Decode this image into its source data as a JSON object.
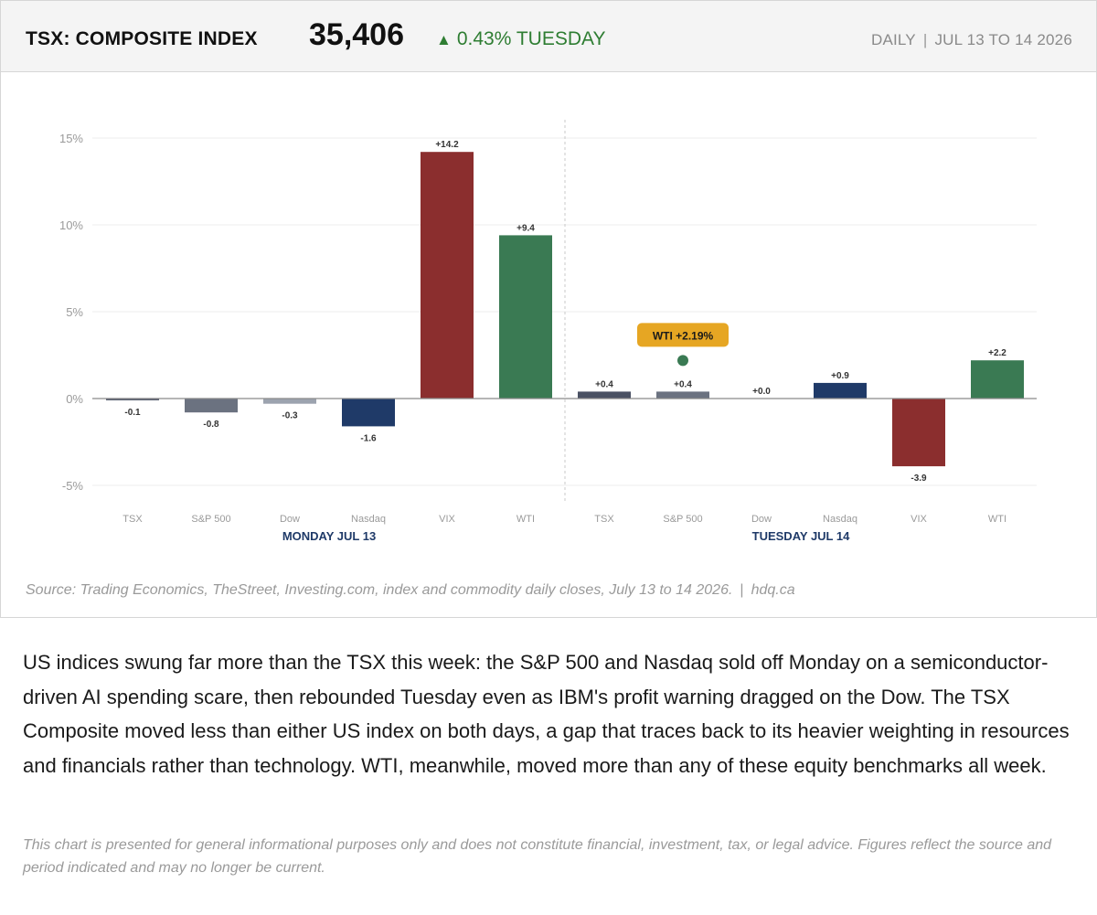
{
  "header": {
    "title": "TSX: COMPOSITE INDEX",
    "value": "35,406",
    "change_arrow": "▲",
    "change": "0.43% TUESDAY",
    "frequency": "DAILY",
    "separator": "|",
    "period": "JUL 13 TO 14 2026"
  },
  "chart_data": {
    "type": "bar",
    "ylim": [
      -6,
      16
    ],
    "yticks": [
      -5,
      0,
      5,
      10,
      15
    ],
    "ytick_labels": [
      "-5%",
      "0%",
      "5%",
      "10%",
      "15%"
    ],
    "grid": true,
    "groups": [
      {
        "label": "MONDAY JUL 13",
        "categories": [
          "TSX",
          "S&P 500",
          "Dow",
          "Nasdaq",
          "VIX",
          "WTI"
        ],
        "values": [
          -0.1,
          -0.8,
          -0.3,
          -1.6,
          14.2,
          9.4
        ],
        "value_labels": [
          "-0.1",
          "-0.8",
          "-0.3",
          "-1.6",
          "+14.2",
          "+9.4"
        ]
      },
      {
        "label": "TUESDAY JUL 14",
        "categories": [
          "TSX",
          "S&P 500",
          "Dow",
          "Nasdaq",
          "VIX",
          "WTI"
        ],
        "values": [
          0.4,
          0.4,
          0.0,
          0.9,
          -3.9,
          2.2
        ],
        "value_labels": [
          "+0.4",
          "+0.4",
          "+0.0",
          "+0.9",
          "-3.9",
          "+2.2"
        ]
      }
    ],
    "colors": {
      "TSX": "#4a5163",
      "S&P 500": "#6b7280",
      "Dow": "#9ca3af",
      "Nasdaq": "#1f3a68",
      "VIX": "#8b2e2e",
      "WTI": "#3a7a53"
    },
    "annotation": {
      "label": "WTI +2.19%",
      "x_group": 1,
      "x_category": "S&P 500",
      "y": 2.19,
      "badge_color": "#e6a623",
      "dot_color": "#3a7a53"
    },
    "group_label_color": "#1f3a68"
  },
  "footer": {
    "source": "Source: Trading Economics, TheStreet, Investing.com, index and commodity daily closes, July 13 to 14 2026.",
    "separator": "|",
    "site": "hdq.ca"
  },
  "commentary": "US indices swung far more than the TSX this week: the S&P 500 and Nasdaq sold off Monday on a semiconductor-driven AI spending scare, then rebounded Tuesday even as IBM's profit warning dragged on the Dow. The TSX Composite moved less than either US index on both days, a gap that traces back to its heavier weighting in resources and financials rather than technology. WTI, meanwhile, moved more than any of these equity benchmarks all week.",
  "disclaimer": "This chart is presented for general informational purposes only and does not constitute financial, investment, tax, or legal advice. Figures reflect the source and period indicated and may no longer be current."
}
